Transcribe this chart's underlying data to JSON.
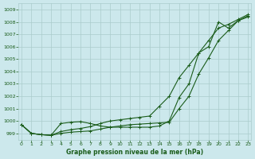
{
  "x": [
    0,
    1,
    2,
    3,
    4,
    5,
    6,
    7,
    8,
    9,
    10,
    11,
    12,
    13,
    14,
    15,
    16,
    17,
    18,
    19,
    20,
    21,
    22,
    23
  ],
  "series1": [
    999.7,
    999.0,
    998.9,
    998.85,
    999.0,
    999.1,
    999.15,
    999.2,
    999.35,
    999.5,
    999.6,
    999.7,
    999.75,
    999.8,
    999.85,
    999.9,
    1001.0,
    1002.0,
    1003.8,
    1005.1,
    1006.5,
    1007.3,
    1008.1,
    1008.5
  ],
  "series2": [
    999.7,
    999.0,
    998.9,
    998.85,
    999.15,
    999.3,
    999.4,
    999.55,
    999.8,
    1000.0,
    1000.1,
    1000.2,
    1000.3,
    1000.4,
    1001.2,
    1002.0,
    1003.5,
    1004.5,
    1005.5,
    1006.5,
    1007.5,
    1007.8,
    1008.2,
    1008.6
  ],
  "series3": [
    999.7,
    999.0,
    998.9,
    998.85,
    999.8,
    999.9,
    999.95,
    999.8,
    999.6,
    999.5,
    999.5,
    999.5,
    999.5,
    999.5,
    999.6,
    1000.0,
    1001.9,
    1003.0,
    1005.5,
    1006.0,
    1008.0,
    1007.5,
    1008.1,
    1008.4
  ],
  "bg_color": "#cce8ec",
  "grid_color": "#aacccc",
  "line_color": "#1a5c1a",
  "xlabel": "Graphe pression niveau de la mer (hPa)",
  "ylim": [
    998.5,
    1009.5
  ],
  "xlim": [
    -0.3,
    23.3
  ],
  "yticks": [
    999,
    1000,
    1001,
    1002,
    1003,
    1004,
    1005,
    1006,
    1007,
    1008,
    1009
  ],
  "xticks": [
    0,
    1,
    2,
    3,
    4,
    5,
    6,
    7,
    8,
    9,
    10,
    11,
    12,
    13,
    14,
    15,
    16,
    17,
    18,
    19,
    20,
    21,
    22,
    23
  ],
  "marker_size": 3,
  "line_width": 0.8
}
